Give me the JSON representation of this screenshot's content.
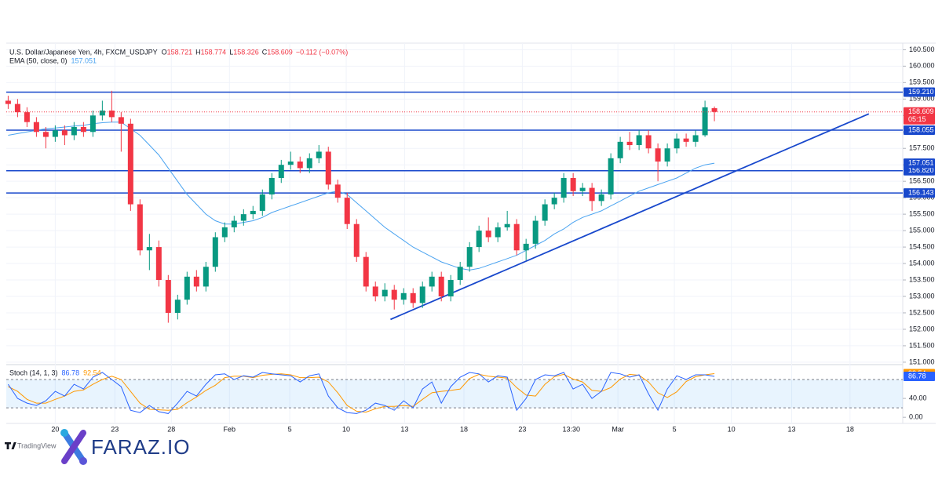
{
  "chart_data": {
    "type": "candlestick",
    "symbol": "U.S. Dollar/Japanese Yen, 4h, FXCM_USDJPY",
    "ohlc_prefixes": [
      "O",
      "H",
      "L",
      "C"
    ],
    "change": "−0.112 (−0.07%)",
    "ema_label": "EMA (50, close, 0)",
    "stoch_label": "Stoch (14, 1, 3)",
    "countdown": "05:15",
    "branding": {
      "tradingview": "TradingView",
      "logo": "FARAZ.IO"
    },
    "colors": {
      "up": "#089981",
      "down": "#f23645",
      "ema": "#4aa3f0",
      "level": "#1848cc",
      "stoch_k": "#2962ff",
      "stoch_d": "#ff9800"
    },
    "xlim": [
      -0.2,
      95
    ],
    "xticks": [
      {
        "value": 5,
        "label": "20"
      },
      {
        "value": 11.33,
        "label": "23"
      },
      {
        "value": 17.33,
        "label": "28"
      },
      {
        "value": 23.5,
        "label": "Feb"
      },
      {
        "value": 29.9,
        "label": "5"
      },
      {
        "value": 35.9,
        "label": "10"
      },
      {
        "value": 42.1,
        "label": "13"
      },
      {
        "value": 48.4,
        "label": "18"
      },
      {
        "value": 54.6,
        "label": "23"
      },
      {
        "value": 59.8,
        "label": "13:30"
      },
      {
        "value": 64.75,
        "label": "Mar"
      },
      {
        "value": 70.75,
        "label": "5"
      },
      {
        "value": 76.8,
        "label": "10"
      },
      {
        "value": 83.2,
        "label": "13"
      },
      {
        "value": 89.4,
        "label": "18"
      }
    ],
    "ylim": [
      150.95,
      160.7
    ],
    "yticks": [
      {
        "value": 151,
        "label": "151.000"
      },
      {
        "value": 151.5,
        "label": "151.500"
      },
      {
        "value": 152,
        "label": "152.000"
      },
      {
        "value": 152.5,
        "label": "152.500"
      },
      {
        "value": 153,
        "label": "153.000"
      },
      {
        "value": 153.5,
        "label": "153.500"
      },
      {
        "value": 154,
        "label": "154.000"
      },
      {
        "value": 154.5,
        "label": "154.500"
      },
      {
        "value": 155,
        "label": "155.000"
      },
      {
        "value": 155.5,
        "label": "155.500"
      },
      {
        "value": 156,
        "label": "156.000"
      },
      {
        "value": 156.5,
        "label": "156.500"
      },
      {
        "value": 157,
        "label": "157.000"
      },
      {
        "value": 157.5,
        "label": "157.500"
      },
      {
        "value": 158,
        "label": "158.000"
      },
      {
        "value": 158.5,
        "label": "158.500"
      },
      {
        "value": 159,
        "label": "159.000"
      },
      {
        "value": 159.5,
        "label": "159.500"
      },
      {
        "value": 160,
        "label": "160.000"
      },
      {
        "value": 160.5,
        "label": "160.500"
      }
    ],
    "levels": [
      {
        "value": 159.21,
        "label": "159.210"
      },
      {
        "value": 158.055,
        "label": "158.055"
      },
      {
        "value": 156.82,
        "label": "156.820"
      },
      {
        "value": 156.143,
        "label": "156.143"
      }
    ],
    "trendline": [
      [
        40.6,
        152.3
      ],
      [
        91.4,
        158.55
      ]
    ],
    "ohlc": [
      [
        158.95,
        159.1,
        158.7,
        158.85
      ],
      [
        158.85,
        159.0,
        158.45,
        158.6
      ],
      [
        158.6,
        158.75,
        158.15,
        158.3
      ],
      [
        158.3,
        158.45,
        157.85,
        158.0
      ],
      [
        158.0,
        158.15,
        157.5,
        157.85
      ],
      [
        157.85,
        158.2,
        157.7,
        158.05
      ],
      [
        158.05,
        158.2,
        157.6,
        157.9
      ],
      [
        157.9,
        158.3,
        157.75,
        158.15
      ],
      [
        158.15,
        158.3,
        157.85,
        158.0
      ],
      [
        158.0,
        158.65,
        157.85,
        158.5
      ],
      [
        158.5,
        158.95,
        158.35,
        158.65
      ],
      [
        158.65,
        159.25,
        158.3,
        158.45
      ],
      [
        158.45,
        158.6,
        157.4,
        158.25
      ],
      [
        158.25,
        158.4,
        155.6,
        155.8
      ],
      [
        155.8,
        155.95,
        154.25,
        154.4
      ],
      [
        154.4,
        154.9,
        153.8,
        154.5
      ],
      [
        154.5,
        154.7,
        153.3,
        153.5
      ],
      [
        153.5,
        153.65,
        152.2,
        152.5
      ],
      [
        152.5,
        153.05,
        152.3,
        152.9
      ],
      [
        152.9,
        153.75,
        152.75,
        153.6
      ],
      [
        153.6,
        153.8,
        153.15,
        153.3
      ],
      [
        153.3,
        154.05,
        153.15,
        153.9
      ],
      [
        153.9,
        154.95,
        153.75,
        154.8
      ],
      [
        154.8,
        155.25,
        154.65,
        155.1
      ],
      [
        155.1,
        155.45,
        154.95,
        155.3
      ],
      [
        155.3,
        155.65,
        155.15,
        155.5
      ],
      [
        155.5,
        155.75,
        155.35,
        155.6
      ],
      [
        155.6,
        156.25,
        155.45,
        156.1
      ],
      [
        156.1,
        156.75,
        155.95,
        156.6
      ],
      [
        156.6,
        157.15,
        156.45,
        157.0
      ],
      [
        157.0,
        157.4,
        156.85,
        157.1
      ],
      [
        157.1,
        157.25,
        156.75,
        156.9
      ],
      [
        156.9,
        157.35,
        156.75,
        157.2
      ],
      [
        157.2,
        157.6,
        157.05,
        157.4
      ],
      [
        157.4,
        157.55,
        156.25,
        156.4
      ],
      [
        156.4,
        156.55,
        155.85,
        156.0
      ],
      [
        156.0,
        156.15,
        155.05,
        155.2
      ],
      [
        155.2,
        155.35,
        154.05,
        154.2
      ],
      [
        154.2,
        154.35,
        153.15,
        153.3
      ],
      [
        153.3,
        153.45,
        152.85,
        153.0
      ],
      [
        153.0,
        153.4,
        152.85,
        153.2
      ],
      [
        153.2,
        153.35,
        152.6,
        152.9
      ],
      [
        152.9,
        153.25,
        152.75,
        153.1
      ],
      [
        153.1,
        153.25,
        152.65,
        152.8
      ],
      [
        152.8,
        153.45,
        152.65,
        153.3
      ],
      [
        153.3,
        153.75,
        153.15,
        153.6
      ],
      [
        153.6,
        153.75,
        152.85,
        153.0
      ],
      [
        153.0,
        153.65,
        152.85,
        153.5
      ],
      [
        153.5,
        154.05,
        153.35,
        153.9
      ],
      [
        153.9,
        154.65,
        153.75,
        154.5
      ],
      [
        154.5,
        155.15,
        154.35,
        155.0
      ],
      [
        155.0,
        155.4,
        154.65,
        154.8
      ],
      [
        154.8,
        155.25,
        154.65,
        155.1
      ],
      [
        155.1,
        155.6,
        155.0,
        155.2
      ],
      [
        155.2,
        155.35,
        154.25,
        154.4
      ],
      [
        154.4,
        154.75,
        154.1,
        154.6
      ],
      [
        154.6,
        155.45,
        154.45,
        155.3
      ],
      [
        155.3,
        155.95,
        155.15,
        155.8
      ],
      [
        155.8,
        156.15,
        155.65,
        156.0
      ],
      [
        156.0,
        156.75,
        155.85,
        156.6
      ],
      [
        156.6,
        156.75,
        156.05,
        156.2
      ],
      [
        156.2,
        156.45,
        156.05,
        156.3
      ],
      [
        156.3,
        156.45,
        155.6,
        155.9
      ],
      [
        155.9,
        156.25,
        155.75,
        156.1
      ],
      [
        156.1,
        157.35,
        155.95,
        157.2
      ],
      [
        157.2,
        157.85,
        157.05,
        157.7
      ],
      [
        157.7,
        158.0,
        157.45,
        157.6
      ],
      [
        157.6,
        158.05,
        157.45,
        157.9
      ],
      [
        157.9,
        158.05,
        157.35,
        157.5
      ],
      [
        157.5,
        157.65,
        156.5,
        157.1
      ],
      [
        157.1,
        157.65,
        156.95,
        157.5
      ],
      [
        157.5,
        157.95,
        157.35,
        157.8
      ],
      [
        157.8,
        157.95,
        157.55,
        157.7
      ],
      [
        157.7,
        158.05,
        157.55,
        157.9
      ],
      [
        157.9,
        158.95,
        157.85,
        158.75
      ],
      [
        158.721,
        158.774,
        158.326,
        158.609
      ]
    ],
    "ema": [
      157.9,
      157.95,
      158.0,
      158.05,
      158.1,
      158.12,
      158.15,
      158.18,
      158.2,
      158.25,
      158.28,
      158.3,
      158.3,
      158.1,
      157.9,
      157.6,
      157.3,
      156.9,
      156.5,
      156.1,
      155.8,
      155.5,
      155.3,
      155.2,
      155.2,
      155.25,
      155.3,
      155.4,
      155.55,
      155.65,
      155.75,
      155.85,
      155.95,
      156.05,
      156.15,
      156.2,
      156.1,
      155.85,
      155.6,
      155.35,
      155.1,
      154.9,
      154.7,
      154.5,
      154.35,
      154.2,
      154.05,
      153.95,
      153.85,
      153.8,
      153.85,
      153.95,
      154.05,
      154.15,
      154.25,
      154.4,
      154.55,
      154.7,
      154.9,
      155.05,
      155.25,
      155.4,
      155.5,
      155.6,
      155.75,
      155.9,
      156.05,
      156.2,
      156.3,
      156.4,
      156.5,
      156.6,
      156.75,
      156.9,
      157.0,
      157.051
    ],
    "stoch_ylim": [
      -13,
      110
    ],
    "stoch_yticks": [
      {
        "value": 40,
        "label": "40.00"
      },
      {
        "value": 0,
        "label": "0.00"
      }
    ],
    "stoch_bands": [
      20,
      80
    ],
    "stoch_k": [
      70,
      40,
      30,
      25,
      35,
      55,
      45,
      70,
      60,
      85,
      95,
      80,
      65,
      15,
      10,
      25,
      12,
      8,
      30,
      55,
      45,
      70,
      90,
      92,
      80,
      88,
      85,
      95,
      92,
      90,
      88,
      75,
      88,
      92,
      45,
      20,
      10,
      8,
      15,
      30,
      25,
      15,
      35,
      20,
      60,
      75,
      30,
      65,
      85,
      95,
      92,
      75,
      88,
      85,
      15,
      40,
      80,
      90,
      88,
      95,
      60,
      70,
      40,
      55,
      95,
      92,
      85,
      90,
      50,
      15,
      60,
      88,
      80,
      90,
      90,
      86.78
    ],
    "stoch_d": [
      65,
      55,
      38,
      30,
      30,
      38,
      45,
      55,
      58,
      70,
      80,
      87,
      80,
      55,
      30,
      17,
      16,
      15,
      17,
      31,
      43,
      57,
      68,
      84,
      87,
      87,
      84,
      89,
      91,
      92,
      90,
      84,
      84,
      85,
      75,
      52,
      25,
      13,
      11,
      18,
      23,
      23,
      25,
      23,
      38,
      52,
      55,
      57,
      60,
      82,
      91,
      87,
      85,
      83,
      63,
      47,
      45,
      70,
      86,
      91,
      81,
      75,
      57,
      55,
      63,
      81,
      91,
      89,
      75,
      52,
      42,
      54,
      76,
      86,
      90,
      92.54
    ]
  }
}
